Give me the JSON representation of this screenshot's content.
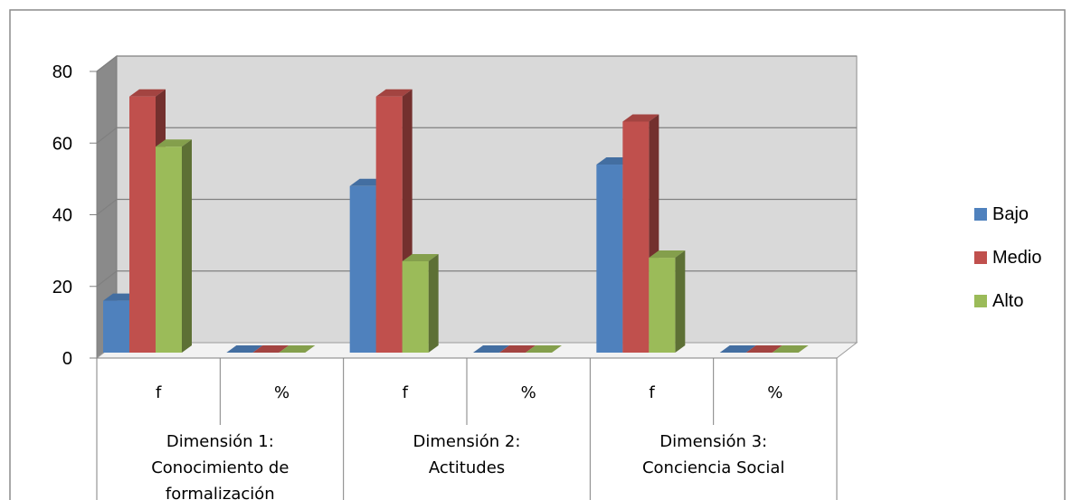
{
  "chart_data": {
    "type": "bar",
    "categories": [
      "f",
      "%",
      "f",
      "%",
      "f",
      "%"
    ],
    "groups": [
      {
        "label_lines": [
          "Dimensión 1:",
          "Conocimiento de",
          "formalización"
        ]
      },
      {
        "label_lines": [
          "Dimensión 2:",
          "Actitudes"
        ]
      },
      {
        "label_lines": [
          "Dimensión 3:",
          "Conciencia Social"
        ]
      }
    ],
    "series": [
      {
        "name": "Bajo",
        "color": "#4F81BD",
        "values": [
          16,
          0,
          48,
          0,
          54,
          0
        ]
      },
      {
        "name": "Medio",
        "color": "#C0504D",
        "values": [
          73,
          0,
          73,
          0,
          66,
          0
        ]
      },
      {
        "name": "Alto",
        "color": "#9BBB59",
        "values": [
          59,
          0,
          27,
          0,
          28,
          0
        ]
      }
    ],
    "ylim": [
      0,
      80
    ],
    "yticks": [
      "0",
      "20",
      "40",
      "60",
      "80"
    ],
    "grid": true,
    "legend_position": "right",
    "title": "",
    "xlabel": "",
    "ylabel": ""
  }
}
